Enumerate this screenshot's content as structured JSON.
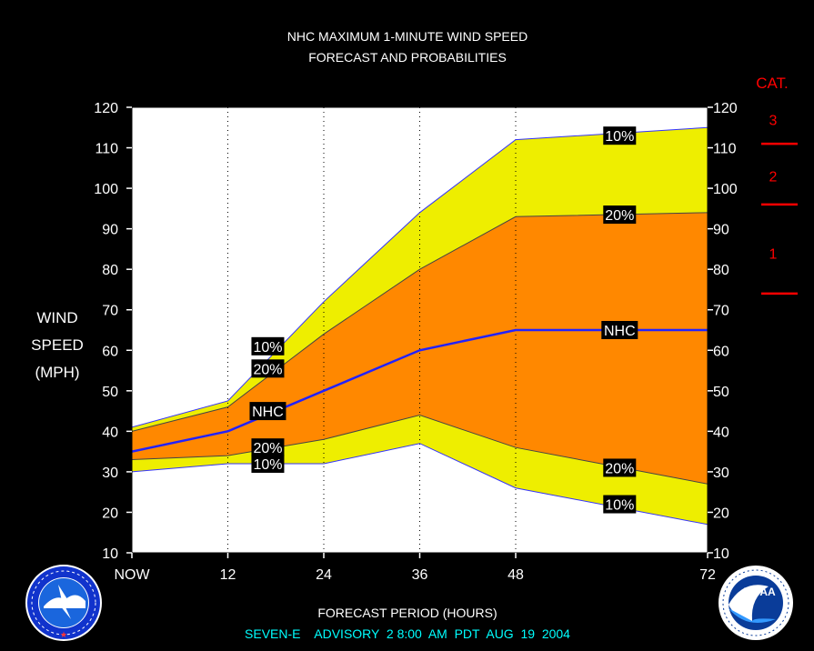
{
  "title_line1": "NHC MAXIMUM 1-MINUTE WIND SPEED",
  "title_line2": "FORECAST AND PROBABILITIES",
  "ylabel_lines": [
    "WIND",
    "SPEED",
    "(MPH)"
  ],
  "xlabel": "FORECAST PERIOD (HOURS)",
  "advisory": "SEVEN-E    ADVISORY  2 8:00  AM  PDT  AUG  19  2004",
  "category_title": "CAT.",
  "category_labels": [
    {
      "label": "3",
      "value": 117
    },
    {
      "label": "2",
      "value": 103
    },
    {
      "label": "1",
      "value": 84
    }
  ],
  "category_thresholds": [
    111,
    96,
    74
  ],
  "colors": {
    "background": "#000000",
    "plot_bg": "#ffffff",
    "outer_band": "#eeee00",
    "inner_band": "#ff8800",
    "nhc_line": "#2222ff",
    "category": "#ff0000",
    "advisory_text": "#00ffff",
    "label_bg": "#000000"
  },
  "logos": {
    "left": "nws-logo",
    "right": "noaa-logo"
  },
  "chart_data": {
    "type": "area",
    "title": "NHC MAXIMUM 1-MINUTE WIND SPEED FORECAST AND PROBABILITIES",
    "xlabel": "FORECAST PERIOD (HOURS)",
    "ylabel": "WIND SPEED (MPH)",
    "x_ticks": [
      {
        "value": 0,
        "label": "NOW"
      },
      {
        "value": 12,
        "label": "12"
      },
      {
        "value": 24,
        "label": "24"
      },
      {
        "value": 36,
        "label": "36"
      },
      {
        "value": 48,
        "label": "48"
      },
      {
        "value": 72,
        "label": "72"
      }
    ],
    "xlim": [
      0,
      72
    ],
    "ylim": [
      10,
      120
    ],
    "y_ticks": [
      10,
      20,
      30,
      40,
      50,
      60,
      70,
      80,
      90,
      100,
      110,
      120
    ],
    "grid": "dotted vertical at forecast hours",
    "x": [
      0,
      12,
      24,
      36,
      48,
      72
    ],
    "series": [
      {
        "name": "10%",
        "role": "upper-10",
        "values": [
          41,
          47.5,
          72,
          94,
          112,
          115
        ]
      },
      {
        "name": "20%",
        "role": "upper-20",
        "values": [
          40,
          46,
          64,
          80,
          93,
          94
        ]
      },
      {
        "name": "NHC",
        "role": "nhc",
        "values": [
          35,
          40,
          50,
          60,
          65,
          65
        ]
      },
      {
        "name": "20%",
        "role": "lower-20",
        "values": [
          33,
          34,
          38,
          44,
          36,
          27
        ]
      },
      {
        "name": "10%",
        "role": "lower-10",
        "values": [
          30,
          32,
          32,
          37,
          26,
          17
        ]
      }
    ],
    "annotations": [
      {
        "text": "10%",
        "x": 61,
        "y": 113
      },
      {
        "text": "20%",
        "x": 61,
        "y": 93.5
      },
      {
        "text": "NHC",
        "x": 61,
        "y": 65
      },
      {
        "text": "20%",
        "x": 61,
        "y": 31
      },
      {
        "text": "10%",
        "x": 61,
        "y": 22
      },
      {
        "text": "10%",
        "x": 17,
        "y": 61
      },
      {
        "text": "20%",
        "x": 17,
        "y": 55.5
      },
      {
        "text": "NHC",
        "x": 17,
        "y": 45
      },
      {
        "text": "20%",
        "x": 17,
        "y": 36
      },
      {
        "text": "10%",
        "x": 17,
        "y": 32
      }
    ]
  }
}
